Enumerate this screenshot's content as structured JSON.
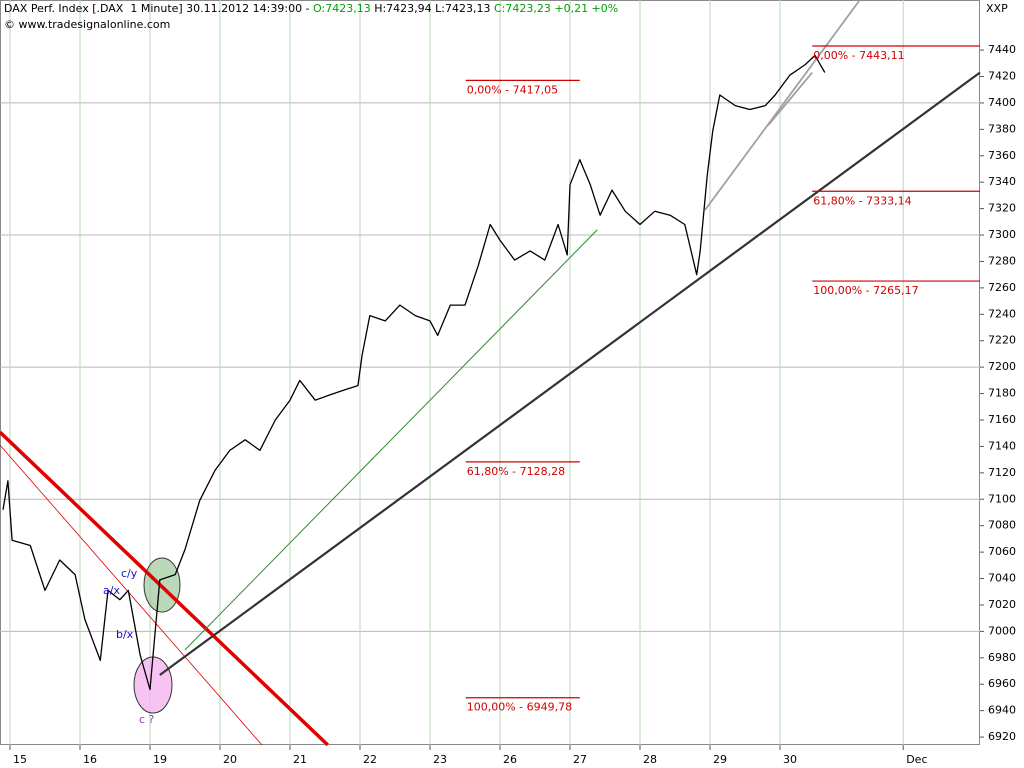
{
  "chart_data": {
    "type": "line",
    "header": [
      {
        "text": "DAX Perf. Index [.DAX  1 Minute] 30.11.2012 14:39:00 - ",
        "color": "#000000"
      },
      {
        "text": "O:7423,13",
        "color": "#00a000"
      },
      {
        "text": " H:7423,94 L:7423,13 ",
        "color": "#000000"
      },
      {
        "text": "C:7423,23 +0,21 +0%",
        "color": "#00a000"
      }
    ],
    "subtitle": "© www.tradesignalonline.com",
    "axis_title": "XXP",
    "xlim": [
      -0.143,
      13.857
    ],
    "ylim": [
      6914,
      7477.9
    ],
    "xticks": [
      {
        "value": 0,
        "label": "15"
      },
      {
        "value": 1,
        "label": "16"
      },
      {
        "value": 2,
        "label": "19"
      },
      {
        "value": 3,
        "label": "20"
      },
      {
        "value": 4,
        "label": "21"
      },
      {
        "value": 5,
        "label": "22"
      },
      {
        "value": 6,
        "label": "23"
      },
      {
        "value": 7,
        "label": "26"
      },
      {
        "value": 8,
        "label": "27"
      },
      {
        "value": 9,
        "label": "28"
      },
      {
        "value": 10,
        "label": "29"
      },
      {
        "value": 11,
        "label": "30"
      },
      {
        "value": 12.76,
        "label": "Dec"
      }
    ],
    "yticks": [
      6920,
      6940,
      6960,
      6980,
      7000,
      7020,
      7040,
      7060,
      7080,
      7100,
      7120,
      7140,
      7160,
      7180,
      7200,
      7220,
      7240,
      7260,
      7280,
      7300,
      7320,
      7340,
      7360,
      7380,
      7400,
      7420,
      7440
    ],
    "ygrid": [
      7000,
      7100,
      7200,
      7300,
      7400
    ],
    "series": [
      {
        "color": "#000000",
        "x": [
          -0.1,
          -0.03,
          0.03,
          0.29,
          0.5,
          0.71,
          0.93,
          1.07,
          1.29,
          1.4,
          1.57,
          1.69,
          1.86,
          2.0,
          2.14,
          2.36,
          2.5,
          2.71,
          2.93,
          3.14,
          3.36,
          3.57,
          3.79,
          4.0,
          4.14,
          4.36,
          4.57,
          4.79,
          4.97,
          5.03,
          5.14,
          5.36,
          5.57,
          5.79,
          6.0,
          6.11,
          6.29,
          6.5,
          6.69,
          6.86,
          7.0,
          7.21,
          7.43,
          7.64,
          7.83,
          7.96,
          8.0,
          8.14,
          8.29,
          8.43,
          8.6,
          8.79,
          9.0,
          9.21,
          9.43,
          9.64,
          9.81,
          9.86,
          9.96,
          10.04,
          10.14,
          10.36,
          10.57,
          10.79,
          10.93,
          11.14,
          11.36,
          11.5,
          11.64
        ],
        "values": [
          7092,
          7114,
          7069,
          7065,
          7031,
          7054,
          7043,
          7009,
          6978,
          7031,
          7024,
          7031,
          6982,
          6956,
          7039,
          7043,
          7062,
          7099,
          7122,
          7137,
          7145,
          7137,
          7160,
          7175,
          7190,
          7175,
          7179,
          7183,
          7186,
          7209,
          7239,
          7235,
          7247,
          7239,
          7235,
          7224,
          7247,
          7247,
          7277,
          7308,
          7296,
          7281,
          7288,
          7281,
          7308,
          7285,
          7338,
          7357,
          7338,
          7315,
          7334,
          7318,
          7308,
          7318,
          7315,
          7308,
          7270,
          7288,
          7345,
          7379,
          7406,
          7398,
          7395,
          7398,
          7406,
          7421,
          7429,
          7436,
          7423
        ]
      }
    ],
    "fib_levels": [
      {
        "label": "0,00% - 7417,05",
        "value": 7417.05,
        "x": [
          6.51,
          8.14
        ]
      },
      {
        "label": "61,80% - 7128,28",
        "value": 7128.28,
        "x": [
          6.51,
          8.14
        ]
      },
      {
        "label": "100,00% - 6949,78",
        "value": 6949.78,
        "x": [
          6.51,
          8.14
        ]
      },
      {
        "label": "0,00% - 7443,11",
        "value": 7443.11,
        "x": [
          11.46,
          13.857
        ]
      },
      {
        "label": "61,80% - 7333,14",
        "value": 7333.14,
        "x": [
          11.46,
          13.857
        ]
      },
      {
        "label": "100,00% - 7265,17",
        "value": 7265.17,
        "x": [
          11.46,
          13.857
        ]
      }
    ],
    "fib_color": "#d00000",
    "lines": [
      {
        "x": [
          -0.143,
          4.54
        ],
        "y": [
          7150.8,
          6914
        ],
        "color": "#e00000",
        "width": 3.5
      },
      {
        "x": [
          -0.143,
          3.6
        ],
        "y": [
          7141,
          6914
        ],
        "color": "#e00000",
        "width": 0.8
      },
      {
        "x": [
          2.14,
          13.857
        ],
        "y": [
          6967,
          7423
        ],
        "color": "#333333",
        "width": 2.2
      },
      {
        "x": [
          2.5,
          8.39
        ],
        "y": [
          6986,
          7304
        ],
        "color": "#2e8b2e",
        "width": 1
      },
      {
        "x": [
          9.93,
          12.14
        ],
        "y": [
          7319,
          7477.9
        ],
        "color": "#a0a0a0",
        "width": 1.8
      },
      {
        "x": [
          10.83,
          11.46
        ],
        "y": [
          7383,
          7423
        ],
        "color": "#a0a0a0",
        "width": 1.8
      }
    ],
    "annotations": [
      {
        "text": "c/y",
        "color": "#1010c0"
      },
      {
        "text": "a/x",
        "color": "#1010c0"
      },
      {
        "text": "b/x",
        "color": "#1010c0"
      },
      {
        "text": "c ?",
        "color": "#9040c0"
      }
    ]
  }
}
